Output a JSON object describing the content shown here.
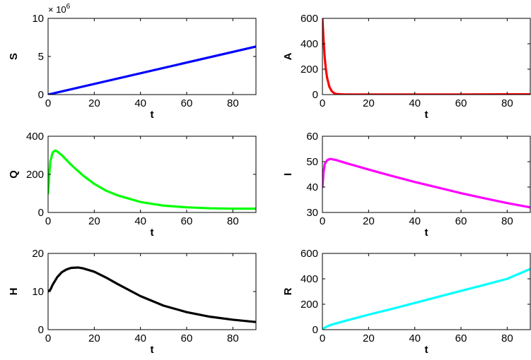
{
  "chart_data": [
    {
      "type": "line",
      "title": "",
      "xlabel": "t",
      "ylabel": "S",
      "y_exponent_label": "× 10^6",
      "xlim": [
        0,
        90
      ],
      "ylim": [
        0,
        10
      ],
      "xticks": [
        0,
        20,
        40,
        60,
        80
      ],
      "yticks": [
        0,
        5,
        10
      ],
      "grid": false,
      "color": "#0000ff",
      "series": [
        {
          "x": [
            0,
            90
          ],
          "y": [
            0,
            6.3
          ]
        }
      ]
    },
    {
      "type": "line",
      "title": "",
      "xlabel": "t",
      "ylabel": "A",
      "xlim": [
        0,
        90
      ],
      "ylim": [
        0,
        600
      ],
      "xticks": [
        0,
        20,
        40,
        60,
        80
      ],
      "yticks": [
        0,
        200,
        400,
        600
      ],
      "grid": false,
      "color": "#ff0000",
      "series": [
        {
          "x": [
            0,
            0.5,
            1,
            1.5,
            2,
            3,
            4,
            5,
            6,
            8,
            10,
            20,
            40,
            60,
            80,
            90
          ],
          "y": [
            600,
            430,
            290,
            200,
            135,
            62,
            28,
            12,
            5,
            2,
            1,
            1,
            1,
            1,
            2,
            2
          ]
        }
      ]
    },
    {
      "type": "line",
      "title": "",
      "xlabel": "t",
      "ylabel": "Q",
      "xlim": [
        0,
        90
      ],
      "ylim": [
        0,
        400
      ],
      "xticks": [
        0,
        20,
        40,
        60,
        80
      ],
      "yticks": [
        0,
        200,
        400
      ],
      "grid": false,
      "color": "#00ff00",
      "series": [
        {
          "x": [
            0,
            0.5,
            1,
            2,
            3,
            4,
            6,
            8,
            10,
            15,
            20,
            25,
            30,
            40,
            50,
            60,
            70,
            80,
            90
          ],
          "y": [
            100,
            200,
            270,
            315,
            325,
            320,
            300,
            275,
            250,
            195,
            150,
            115,
            90,
            55,
            36,
            27,
            22,
            20,
            20
          ]
        }
      ]
    },
    {
      "type": "line",
      "title": "",
      "xlabel": "t",
      "ylabel": "I",
      "xlim": [
        0,
        90
      ],
      "ylim": [
        30,
        60
      ],
      "xticks": [
        0,
        20,
        40,
        60,
        80
      ],
      "yticks": [
        30,
        40,
        50,
        60
      ],
      "grid": false,
      "color": "#ff00ff",
      "series": [
        {
          "x": [
            0,
            0.5,
            1,
            2,
            3,
            4,
            6,
            10,
            20,
            30,
            40,
            50,
            60,
            70,
            80,
            90
          ],
          "y": [
            40,
            46,
            49,
            50.5,
            51,
            51,
            50.6,
            49.5,
            46.9,
            44.4,
            42,
            39.8,
            37.6,
            35.6,
            33.7,
            32
          ]
        }
      ]
    },
    {
      "type": "line",
      "title": "",
      "xlabel": "t",
      "ylabel": "H",
      "xlim": [
        0,
        90
      ],
      "ylim": [
        0,
        20
      ],
      "xticks": [
        0,
        20,
        40,
        60,
        80
      ],
      "yticks": [
        0,
        10,
        20
      ],
      "grid": false,
      "color": "#000000",
      "series": [
        {
          "x": [
            0,
            1,
            2,
            4,
            6,
            8,
            10,
            13,
            15,
            20,
            25,
            30,
            40,
            50,
            60,
            70,
            80,
            90
          ],
          "y": [
            10,
            10.5,
            11.8,
            13.8,
            15.1,
            15.8,
            16.2,
            16.3,
            16.1,
            15.2,
            13.7,
            12,
            8.8,
            6.3,
            4.6,
            3.4,
            2.6,
            2
          ]
        }
      ]
    },
    {
      "type": "line",
      "title": "",
      "xlabel": "t",
      "ylabel": "R",
      "xlim": [
        0,
        90
      ],
      "ylim": [
        0,
        600
      ],
      "xticks": [
        0,
        20,
        40,
        60,
        80
      ],
      "yticks": [
        0,
        200,
        400,
        600
      ],
      "grid": false,
      "color": "#00ffff",
      "series": [
        {
          "x": [
            0,
            1,
            2,
            3,
            5,
            10,
            20,
            30,
            40,
            50,
            60,
            70,
            80,
            90
          ],
          "y": [
            5,
            15,
            25,
            33,
            45,
            70,
            118,
            163,
            210,
            258,
            305,
            352,
            400,
            478
          ]
        }
      ]
    }
  ]
}
